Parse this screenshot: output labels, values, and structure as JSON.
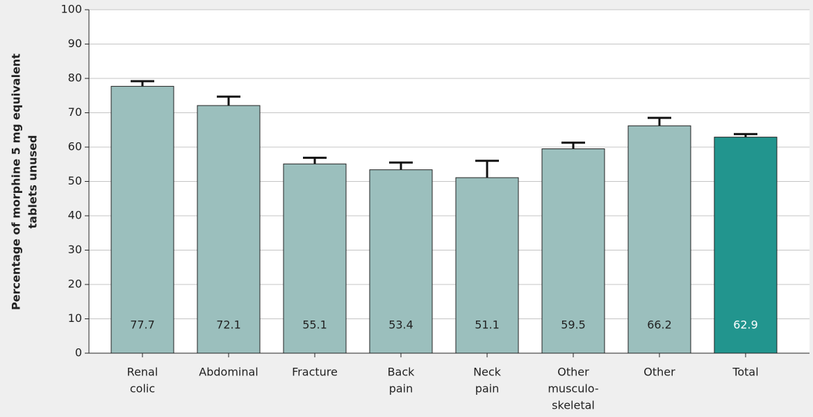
{
  "chart_data": {
    "type": "bar",
    "y_label": [
      "Percentage of morphine 5 mg equivalent",
      "tablets unused"
    ],
    "categories": [
      [
        "Renal",
        "colic"
      ],
      [
        "Abdominal"
      ],
      [
        "Fracture"
      ],
      [
        "Back",
        "pain"
      ],
      [
        "Neck",
        "pain"
      ],
      [
        "Other",
        "musculo-",
        "skeletal"
      ],
      [
        "Other"
      ],
      [
        "Total"
      ]
    ],
    "values": [
      77.7,
      72.1,
      55.1,
      53.4,
      51.1,
      59.5,
      66.2,
      62.9
    ],
    "errors": [
      1.5,
      2.6,
      1.8,
      2.1,
      4.9,
      1.8,
      2.3,
      0.9
    ],
    "colors": [
      "#9bbfbd",
      "#9bbfbd",
      "#9bbfbd",
      "#9bbfbd",
      "#9bbfbd",
      "#9bbfbd",
      "#9bbfbd",
      "#22958e"
    ],
    "label_colors": [
      "#222222",
      "#222222",
      "#222222",
      "#222222",
      "#222222",
      "#222222",
      "#222222",
      "#ffffff"
    ],
    "ylim": [
      0,
      100
    ],
    "yticks": [
      0,
      10,
      20,
      30,
      40,
      50,
      60,
      70,
      80,
      90,
      100
    ],
    "grid": true
  }
}
